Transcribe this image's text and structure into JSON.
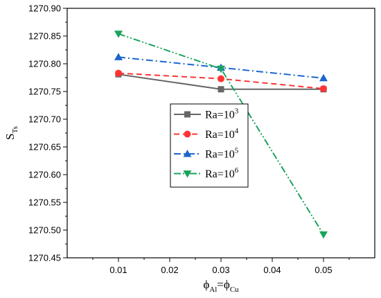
{
  "chart_data": {
    "type": "line",
    "xlabel": {
      "base": "ϕ",
      "sub1": "Al",
      "mid": "=ϕ",
      "sub2": "Cu"
    },
    "ylabel": {
      "base": "S",
      "sub": "Ts"
    },
    "xlim": [
      0.0,
      0.06
    ],
    "ylim": [
      1270.45,
      1270.9
    ],
    "xticks": [
      0.01,
      0.02,
      0.03,
      0.04,
      0.05
    ],
    "xtick_labels": [
      "0.01",
      "0.02",
      "0.03",
      "0.04",
      "0.05"
    ],
    "yticks": [
      1270.45,
      1270.5,
      1270.55,
      1270.6,
      1270.65,
      1270.7,
      1270.75,
      1270.8,
      1270.85,
      1270.9
    ],
    "ytick_labels": [
      "1270.45",
      "1270.50",
      "1270.55",
      "1270.60",
      "1270.65",
      "1270.70",
      "1270.75",
      "1270.80",
      "1270.85",
      "1270.90"
    ],
    "grid": false,
    "legend_position": "center",
    "x": [
      0.01,
      0.03,
      0.05
    ],
    "series": [
      {
        "name": "Ra=10",
        "sup": "3",
        "values": [
          1270.781,
          1270.754,
          1270.754
        ],
        "color": "#666666",
        "dash": "solid",
        "marker": "square"
      },
      {
        "name": "Ra=10",
        "sup": "4",
        "values": [
          1270.783,
          1270.773,
          1270.755
        ],
        "color": "#ff3333",
        "dash": "dash",
        "marker": "circle"
      },
      {
        "name": "Ra=10",
        "sup": "5",
        "values": [
          1270.812,
          1270.793,
          1270.774
        ],
        "color": "#1a66cc",
        "dash": "dashdot",
        "marker": "triangle-up"
      },
      {
        "name": "Ra=10",
        "sup": "6",
        "values": [
          1270.854,
          1270.791,
          1270.492
        ],
        "color": "#1aa35c",
        "dash": "dashdotdot",
        "marker": "triangle-down"
      }
    ]
  }
}
